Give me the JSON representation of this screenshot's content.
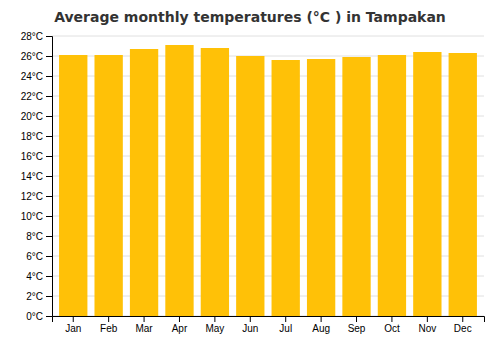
{
  "chart_data": {
    "type": "bar",
    "title": "Average monthly temperatures (°C ) in Tampakan",
    "categories": [
      "Jan",
      "Feb",
      "Mar",
      "Apr",
      "May",
      "Jun",
      "Jul",
      "Aug",
      "Sep",
      "Oct",
      "Nov",
      "Dec"
    ],
    "values": [
      26.1,
      26.1,
      26.7,
      27.1,
      26.8,
      26.0,
      25.6,
      25.7,
      25.9,
      26.1,
      26.4,
      26.3
    ],
    "color": "#FFC107",
    "ylim": [
      0,
      28
    ],
    "yticks": [
      {
        "value": 0,
        "label": "0°C"
      },
      {
        "value": 2,
        "label": "2°C"
      },
      {
        "value": 4,
        "label": "4°C"
      },
      {
        "value": 6,
        "label": "6°C"
      },
      {
        "value": 8,
        "label": "8°C"
      },
      {
        "value": 10,
        "label": "10°C"
      },
      {
        "value": 12,
        "label": "12°C"
      },
      {
        "value": 14,
        "label": "14°C"
      },
      {
        "value": 16,
        "label": "16°C"
      },
      {
        "value": 18,
        "label": "18°C"
      },
      {
        "value": 20,
        "label": "20°C"
      },
      {
        "value": 22,
        "label": "22°C"
      },
      {
        "value": 24,
        "label": "24°C"
      },
      {
        "value": 26,
        "label": "26°C"
      },
      {
        "value": 28,
        "label": "28°C"
      }
    ],
    "grid": true
  }
}
